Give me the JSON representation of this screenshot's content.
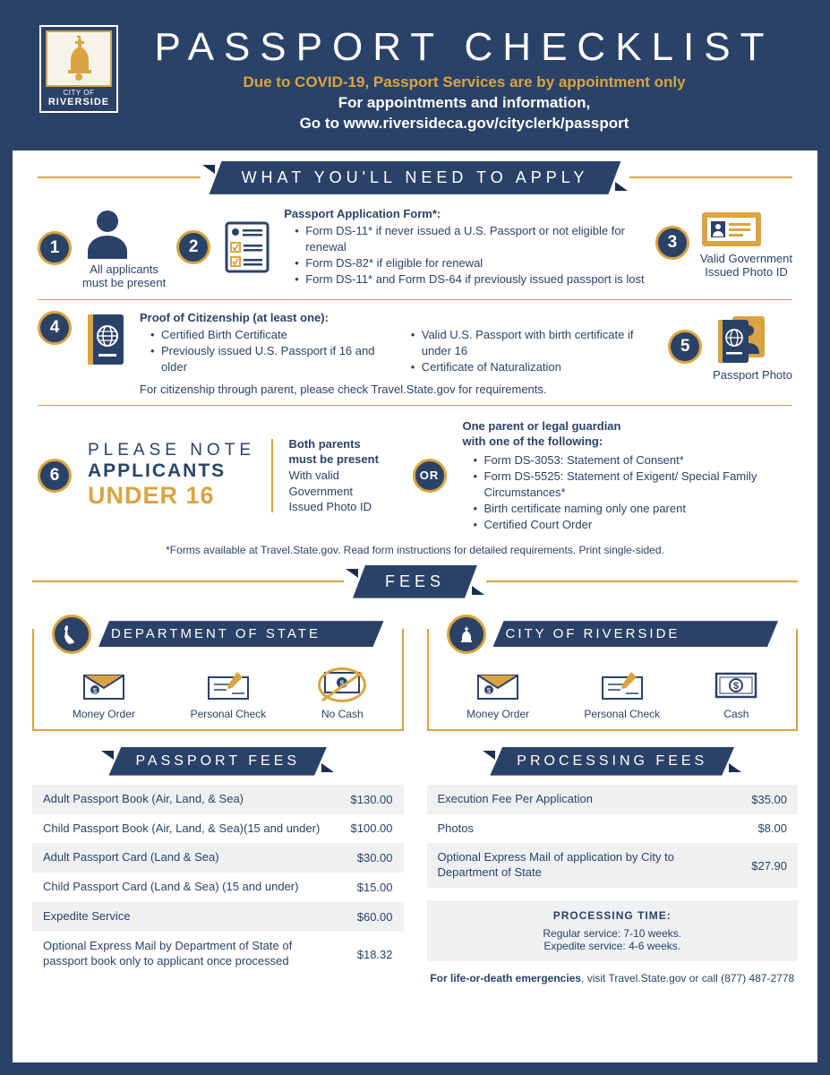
{
  "colors": {
    "navy": "#2b4268",
    "gold": "#d9a441",
    "lightgray": "#eef0f2",
    "white": "#ffffff"
  },
  "logo": {
    "line1": "CITY OF",
    "line2": "RIVERSIDE"
  },
  "header": {
    "title": "PASSPORT CHECKLIST",
    "sub1": "Due to COVID-19, Passport Services are by appointment only",
    "sub2": "For appointments and information,",
    "sub3": "Go to www.riversideca.gov/cityclerk/passport"
  },
  "section1": {
    "title": "WHAT YOU'LL NEED TO APPLY",
    "items": [
      {
        "n": "1",
        "cap": "All applicants\nmust be present"
      },
      {
        "n": "2",
        "title": "Passport Application Form*:",
        "bullets": [
          "Form DS-11* if never issued a U.S. Passport or not eligible for renewal",
          "Form DS-82* if eligible for renewal",
          "Form DS-11* and Form DS-64 if previously issued passport is lost"
        ]
      },
      {
        "n": "3",
        "cap": "Valid Government\nIssued Photo ID"
      },
      {
        "n": "4",
        "title": "Proof of Citizenship (at least one):",
        "col1": [
          "Certified Birth Certificate",
          "Previously issued U.S. Passport if 16 and older"
        ],
        "col2": [
          "Valid U.S. Passport with birth certificate if under 16",
          "Certificate of Naturalization"
        ],
        "foot": "For citizenship through parent, please check Travel.State.gov for requirements."
      },
      {
        "n": "5",
        "cap": "Passport Photo"
      },
      {
        "n": "6",
        "please": "PLEASE NOTE",
        "app": "APPLICANTS",
        "u16": "UNDER 16",
        "left": {
          "b": "Both parents\nmust be present",
          "t": "With valid\nGovernment\nIssued Photo ID"
        },
        "or": "OR",
        "right": {
          "b": "One parent or legal guardian\nwith one of the following:",
          "bullets": [
            "Form DS-3053: Statement of Consent*",
            "Form DS-5525: Statement of Exigent/ Special Family Circumstances*",
            "Birth certificate naming only one parent",
            "Certified Court Order"
          ]
        }
      }
    ],
    "asterisk": "*Forms available at Travel.State.gov. Read form instructions for detailed requirements. Print single-sided."
  },
  "fees": {
    "title": "FEES",
    "left": {
      "header": "DEPARTMENT OF STATE",
      "pay": [
        {
          "l": "Money Order"
        },
        {
          "l": "Personal Check"
        },
        {
          "l": "No Cash"
        }
      ],
      "tbl_title": "PASSPORT FEES",
      "rows": [
        {
          "l": "Adult Passport Book (Air, Land, & Sea)",
          "p": "$130.00"
        },
        {
          "l": "Child Passport Book (Air, Land, & Sea)(15 and under)",
          "p": "$100.00"
        },
        {
          "l": "Adult Passport Card (Land & Sea)",
          "p": "$30.00"
        },
        {
          "l": "Child Passport Card (Land & Sea) (15 and under)",
          "p": "$15.00"
        },
        {
          "l": "Expedite Service",
          "p": "$60.00"
        },
        {
          "l": "Optional Express Mail by Department of State of passport book only to applicant once processed",
          "p": "$18.32"
        }
      ]
    },
    "right": {
      "header": "CITY OF RIVERSIDE",
      "pay": [
        {
          "l": "Money Order"
        },
        {
          "l": "Personal Check"
        },
        {
          "l": "Cash"
        }
      ],
      "tbl_title": "PROCESSING FEES",
      "rows": [
        {
          "l": "Execution Fee Per Application",
          "p": "$35.00"
        },
        {
          "l": "Photos",
          "p": "$8.00"
        },
        {
          "l": "Optional Express Mail of application by City to Department of State",
          "p": "$27.90"
        }
      ],
      "proc_title": "PROCESSING TIME:",
      "proc_text": "Regular  service:  7-10  weeks.\nExpedite service: 4-6 weeks.",
      "emerg_b": "For life-or-death emergencies",
      "emerg_t": ", visit Travel.State.gov or call (877) 487-2778"
    }
  }
}
